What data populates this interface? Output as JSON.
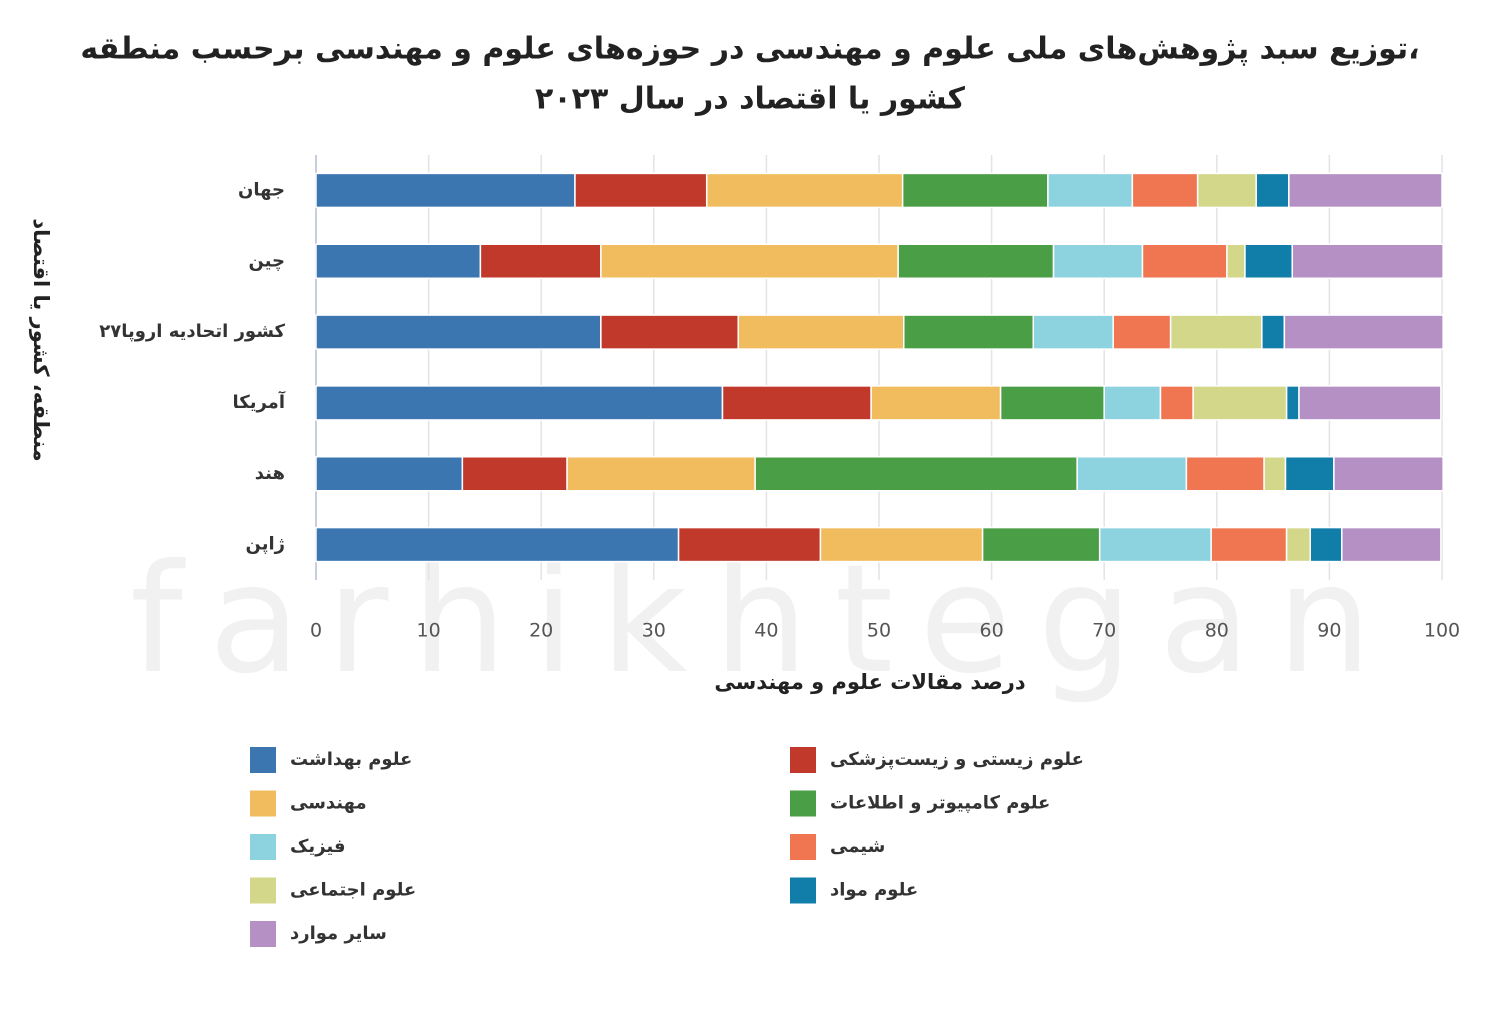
{
  "chart_data": {
    "type": "stacked-barh",
    "title": [
      "توزیع سبد پژوهش‌های ملی علوم و مهندسی در حوزه‌های علوم و مهندسی برحسب منطقه،",
      "کشور یا اقتصاد در سال ۲۰۲۳"
    ],
    "x_label": "درصد مقالات علوم و مهندسی",
    "y_label": "منطقه، کشور یا اقتصاد",
    "watermark": "farhikhtegan",
    "categories": [
      "جهان",
      "چین",
      "۲۷کشور اتحادیه اروپا",
      "آمریکا",
      "هند",
      "ژاپن"
    ],
    "series": [
      {
        "name": "علوم بهداشت",
        "color": "#3b76b0",
        "values": [
          23.0,
          14.6,
          25.3,
          36.1,
          13.0,
          32.2
        ]
      },
      {
        "name": "علوم زیستی و زیست‌پزشکی",
        "color": "#c0392b",
        "values": [
          11.7,
          10.7,
          12.2,
          13.2,
          9.3,
          12.6
        ]
      },
      {
        "name": "مهندسی",
        "color": "#f0bc5e",
        "values": [
          17.4,
          26.4,
          14.7,
          11.5,
          16.7,
          14.4
        ]
      },
      {
        "name": "علوم کامپیوتر و اطلاعات",
        "color": "#4a9e45",
        "values": [
          12.9,
          13.8,
          11.5,
          9.2,
          28.6,
          10.4
        ]
      },
      {
        "name": "فیزیک",
        "color": "#8dd3df",
        "values": [
          7.5,
          7.9,
          7.1,
          5.0,
          9.7,
          9.9
        ]
      },
      {
        "name": "شیمی",
        "color": "#ef7651",
        "values": [
          5.8,
          7.5,
          5.1,
          2.9,
          6.9,
          6.7
        ]
      },
      {
        "name": "علوم اجتماعی",
        "color": "#d3d78a",
        "values": [
          5.2,
          1.6,
          8.1,
          8.3,
          1.9,
          2.1
        ]
      },
      {
        "name": "علوم مواد",
        "color": "#117ea9",
        "values": [
          2.9,
          4.2,
          2.0,
          1.1,
          4.3,
          2.8
        ]
      },
      {
        "name": "سایر موارد",
        "color": "#b590c5",
        "values": [
          13.6,
          13.4,
          14.1,
          12.6,
          9.7,
          8.8
        ]
      }
    ],
    "xlim": [
      0,
      100
    ],
    "xticks": [
      0,
      10,
      20,
      30,
      40,
      50,
      60,
      70,
      80,
      90,
      100
    ],
    "grid": true
  }
}
